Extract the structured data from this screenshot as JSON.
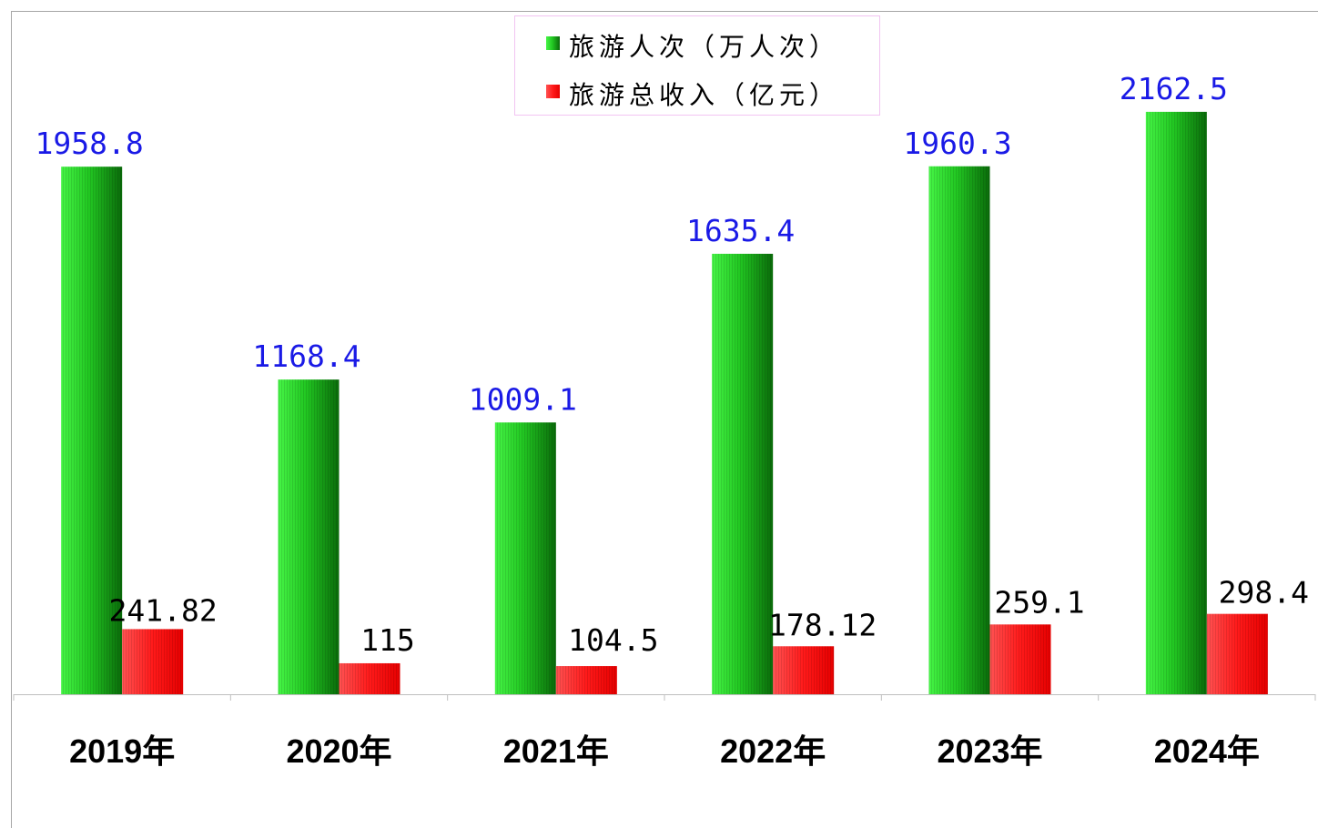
{
  "chart_data": {
    "type": "bar",
    "categories": [
      "2019年",
      "2020年",
      "2021年",
      "2022年",
      "2023年",
      "2024年"
    ],
    "series": [
      {
        "name": "旅游人次（万人次）",
        "values": [
          1958.8,
          1168.4,
          1009.1,
          1635.4,
          1960.3,
          2162.5
        ],
        "color": "#22c822",
        "label_color": "#1a1ae6"
      },
      {
        "name": "旅游总收入（亿元）",
        "values": [
          241.82,
          115,
          104.5,
          178.12,
          259.1,
          298.4
        ],
        "color": "#ff1a1a",
        "label_color": "#000000"
      }
    ],
    "ylim": [
      0,
      2500
    ],
    "grid": false,
    "legend": "top-center",
    "data_labels": true
  }
}
